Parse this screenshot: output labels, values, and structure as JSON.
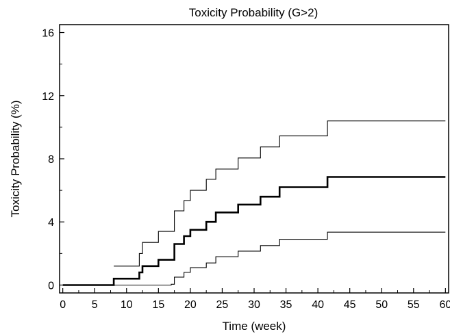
{
  "chart_data": {
    "type": "line",
    "title": "Toxicity Probability (G>2)",
    "xlabel": "Time (week)",
    "ylabel": "Toxicity Probability (%)",
    "xlim": [
      -0.5,
      60.5
    ],
    "ylim": [
      -0.5,
      16.5
    ],
    "x_ticks": [
      0,
      5,
      10,
      15,
      20,
      25,
      30,
      35,
      40,
      45,
      50,
      55,
      60
    ],
    "y_ticks": [
      0,
      4,
      8,
      12,
      16
    ],
    "grid": false,
    "legend": "none",
    "series": [
      {
        "role": "estimate",
        "step": true,
        "points": [
          [
            0,
            0
          ],
          [
            8,
            0
          ],
          [
            8,
            0.4
          ],
          [
            12,
            0.4
          ],
          [
            12,
            0.8
          ],
          [
            12.5,
            0.8
          ],
          [
            12.5,
            1.2
          ],
          [
            15,
            1.2
          ],
          [
            15,
            1.6
          ],
          [
            17.5,
            1.6
          ],
          [
            17.5,
            2.6
          ],
          [
            19,
            2.6
          ],
          [
            19,
            3.1
          ],
          [
            20,
            3.1
          ],
          [
            20,
            3.5
          ],
          [
            22.5,
            3.5
          ],
          [
            22.5,
            4.0
          ],
          [
            24,
            4.0
          ],
          [
            24,
            4.6
          ],
          [
            27.5,
            4.6
          ],
          [
            27.5,
            5.1
          ],
          [
            31,
            5.1
          ],
          [
            31,
            5.6
          ],
          [
            34,
            5.6
          ],
          [
            34,
            6.2
          ],
          [
            41.5,
            6.2
          ],
          [
            41.5,
            6.85
          ],
          [
            60,
            6.85
          ]
        ]
      },
      {
        "role": "upper-bound",
        "step": true,
        "points": [
          [
            8,
            1.2
          ],
          [
            12,
            1.2
          ],
          [
            12,
            2.0
          ],
          [
            12.5,
            2.0
          ],
          [
            12.5,
            2.7
          ],
          [
            15,
            2.7
          ],
          [
            15,
            3.4
          ],
          [
            17.5,
            3.4
          ],
          [
            17.5,
            4.7
          ],
          [
            19,
            4.7
          ],
          [
            19,
            5.35
          ],
          [
            20,
            5.35
          ],
          [
            20,
            6.0
          ],
          [
            22.5,
            6.0
          ],
          [
            22.5,
            6.7
          ],
          [
            24,
            6.7
          ],
          [
            24,
            7.35
          ],
          [
            27.5,
            7.35
          ],
          [
            27.5,
            8.05
          ],
          [
            31,
            8.05
          ],
          [
            31,
            8.75
          ],
          [
            34,
            8.75
          ],
          [
            34,
            9.45
          ],
          [
            41.5,
            9.45
          ],
          [
            41.5,
            10.4
          ],
          [
            60,
            10.4
          ]
        ]
      },
      {
        "role": "lower-bound",
        "step": true,
        "points": [
          [
            8,
            0
          ],
          [
            12,
            0
          ],
          [
            15,
            0
          ],
          [
            17,
            0
          ],
          [
            17,
            0.05
          ],
          [
            17.5,
            0.05
          ],
          [
            17.5,
            0.5
          ],
          [
            19,
            0.5
          ],
          [
            19,
            0.8
          ],
          [
            20,
            0.8
          ],
          [
            20,
            1.1
          ],
          [
            22.5,
            1.1
          ],
          [
            22.5,
            1.4
          ],
          [
            24,
            1.4
          ],
          [
            24,
            1.8
          ],
          [
            27.5,
            1.8
          ],
          [
            27.5,
            2.15
          ],
          [
            31,
            2.15
          ],
          [
            31,
            2.5
          ],
          [
            34,
            2.5
          ],
          [
            34,
            2.9
          ],
          [
            41.5,
            2.9
          ],
          [
            41.5,
            3.35
          ],
          [
            60,
            3.35
          ]
        ]
      }
    ]
  }
}
